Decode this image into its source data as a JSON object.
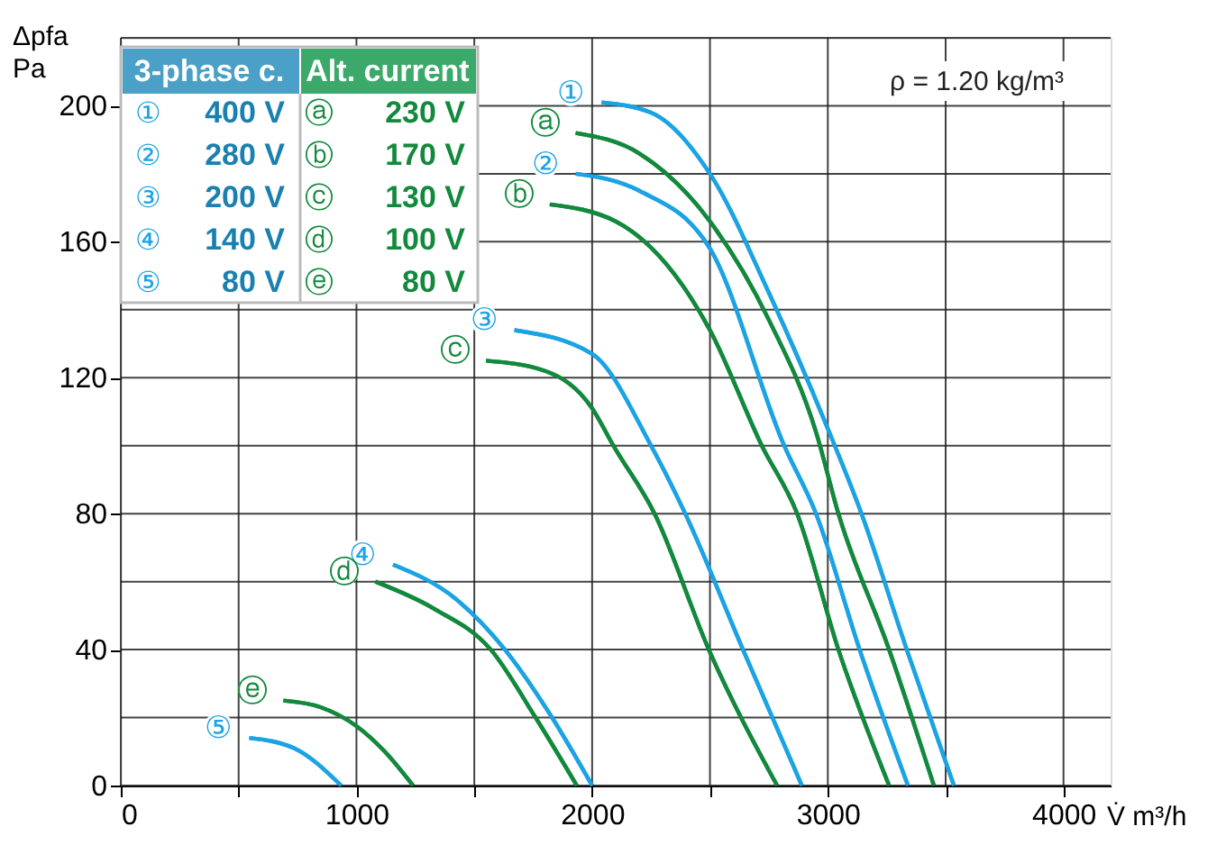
{
  "chart_data": {
    "type": "line",
    "xlabel": "V̇ m³/h",
    "ylabel": "Δpfa Pa",
    "xlim": [
      0,
      4200
    ],
    "ylim": [
      0,
      220
    ],
    "xticks": [
      0,
      {
        "value": 500,
        "label": null
      },
      1000,
      {
        "value": 1500,
        "label": null
      },
      2000,
      {
        "value": 2500,
        "label": null
      },
      3000,
      {
        "value": 3500,
        "label": null
      },
      4000
    ],
    "yticks": [
      0,
      {
        "value": 20,
        "label": null
      },
      40,
      {
        "value": 60,
        "label": null
      },
      80,
      {
        "value": 100,
        "label": null
      },
      120,
      {
        "value": 140,
        "label": null
      },
      160,
      {
        "value": 180,
        "label": null
      },
      200,
      {
        "value": 220,
        "label": null
      }
    ],
    "grid": true,
    "legend": false,
    "marker": "none",
    "line_style": "solid",
    "series": [
      {
        "name": "①",
        "color": "#1ba3e3",
        "x": [
          2040,
          2250,
          2500,
          2750,
          3000,
          3143,
          3335,
          3535
        ],
        "values": [
          201,
          198,
          180,
          145,
          105,
          80,
          40,
          0
        ]
      },
      {
        "name": "ⓐ",
        "color": "#12893d",
        "x": [
          1930,
          2200,
          2500,
          2750,
          2950,
          3045,
          3260,
          3450
        ],
        "values": [
          192,
          186,
          166,
          137,
          104,
          80,
          40,
          0
        ]
      },
      {
        "name": "②",
        "color": "#1ba3e3",
        "x": [
          1930,
          2200,
          2500,
          2815,
          2950,
          3135,
          3340
        ],
        "values": [
          180,
          175,
          158,
          100,
          80,
          40,
          0
        ]
      },
      {
        "name": "ⓑ",
        "color": "#12893d",
        "x": [
          1820,
          2100,
          2500,
          2720,
          2870,
          3045,
          3260
        ],
        "values": [
          171,
          166,
          134,
          100,
          80,
          40,
          0
        ]
      },
      {
        "name": "③",
        "color": "#1ba3e3",
        "x": [
          1670,
          2000,
          2250,
          2395,
          2640,
          2890
        ],
        "values": [
          134,
          127,
          100,
          80,
          40,
          0
        ]
      },
      {
        "name": "ⓒ",
        "color": "#12893d",
        "x": [
          1550,
          1800,
          2000,
          2090,
          2265,
          2495,
          2785
        ],
        "values": [
          125,
          122,
          111,
          100,
          80,
          40,
          0
        ]
      },
      {
        "name": "④",
        "color": "#1ba3e3",
        "x": [
          1155,
          1420,
          1630,
          1830,
          2000
        ],
        "values": [
          65,
          55,
          40,
          20,
          0
        ]
      },
      {
        "name": "ⓓ",
        "color": "#12893d",
        "x": [
          1080,
          1330,
          1570,
          1760,
          1935
        ],
        "values": [
          60,
          52,
          40,
          20,
          0
        ]
      },
      {
        "name": "ⓔ",
        "color": "#12893d",
        "x": [
          690,
          850,
          1000,
          1120,
          1240
        ],
        "values": [
          25,
          23,
          17.5,
          10,
          0
        ]
      },
      {
        "name": "⑤",
        "color": "#1ba3e3",
        "x": [
          545,
          735,
          935
        ],
        "values": [
          14,
          11,
          0
        ]
      }
    ],
    "annotations": [
      "ρ = 1.20 kg/m³",
      "3-phase c.",
      "Alt. current",
      "①",
      "400 V",
      "ⓐ",
      "230 V",
      "②",
      "280 V",
      "ⓑ",
      "170 V",
      "③",
      "200 V",
      "ⓒ",
      "130 V",
      "④",
      "140 V",
      "ⓓ",
      "100 V",
      "⑤",
      "80 V",
      "ⓔ",
      "80 V"
    ]
  }
}
